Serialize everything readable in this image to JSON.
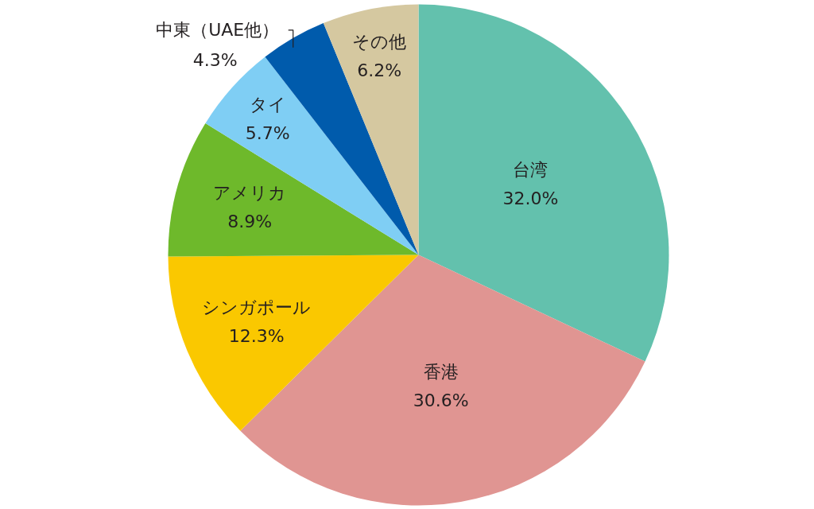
{
  "chart_data": {
    "type": "pie",
    "categories": [
      "台湾",
      "香港",
      "シンガポール",
      "アメリカ",
      "タイ",
      "中東（UAE他）",
      "その他"
    ],
    "values": [
      32.0,
      30.6,
      12.3,
      8.9,
      5.7,
      4.3,
      6.2
    ],
    "colors": [
      "#63c1ad",
      "#e09592",
      "#fac800",
      "#6eb92b",
      "#7fcef4",
      "#005bac",
      "#d5c8a0"
    ],
    "value_labels": [
      "32.0%",
      "30.6%",
      "12.3%",
      "8.9%",
      "5.7%",
      "4.3%",
      "6.2%"
    ]
  }
}
